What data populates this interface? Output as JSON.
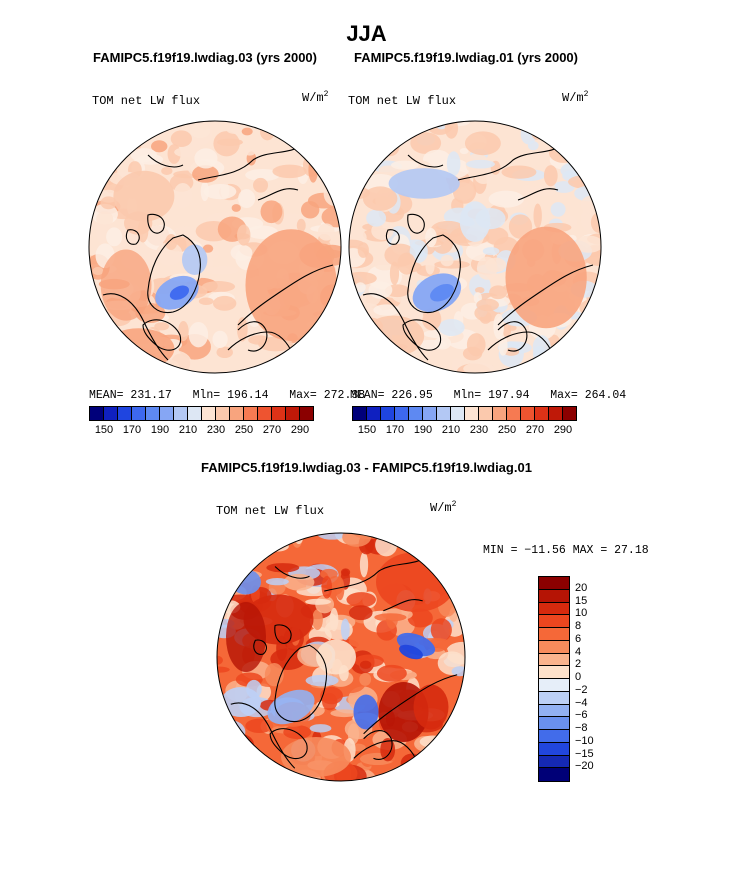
{
  "page_title": "JJA",
  "chart_data": [
    {
      "type": "heatmap",
      "projection": "north-polar-stereographic",
      "case_title": "FAMIPC5.f19f19.lwdiag.03 (yrs 2000)",
      "variable": "TOM net LW flux",
      "units": "W/m",
      "units_exp": "2",
      "mean": "231.17",
      "min": "196.14",
      "max": "272.38",
      "stats_text": {
        "mean_label": "MEAN=",
        "min_label": "Mln=",
        "max_label": "Max="
      },
      "contour_levels": [
        140,
        150,
        160,
        170,
        180,
        190,
        200,
        210,
        220,
        230,
        240,
        250,
        260,
        270,
        280,
        290
      ],
      "colorbar_ticks": [
        "150",
        "170",
        "190",
        "210",
        "230",
        "250",
        "270",
        "290"
      ],
      "colors": [
        "#00007a",
        "#0f20c0",
        "#1f45e0",
        "#3d68ef",
        "#5e89f2",
        "#86a6f4",
        "#b3c8f4",
        "#dde7f4",
        "#fde4d3",
        "#fbc9ad",
        "#f8a47e",
        "#f67a52",
        "#ee5430",
        "#dd3217",
        "#bf1908",
        "#8b0000"
      ]
    },
    {
      "type": "heatmap",
      "projection": "north-polar-stereographic",
      "case_title": "FAMIPC5.f19f19.lwdiag.01 (yrs 2000)",
      "variable": "TOM net LW flux",
      "units": "W/m",
      "units_exp": "2",
      "mean": "226.95",
      "min": "197.94",
      "max": "264.04",
      "stats_text": {
        "mean_label": "MEAN=",
        "min_label": "Mln=",
        "max_label": "Max="
      },
      "contour_levels": [
        140,
        150,
        160,
        170,
        180,
        190,
        200,
        210,
        220,
        230,
        240,
        250,
        260,
        270,
        280,
        290
      ],
      "colorbar_ticks": [
        "150",
        "170",
        "190",
        "210",
        "230",
        "250",
        "270",
        "290"
      ],
      "colors": [
        "#00007a",
        "#0f20c0",
        "#1f45e0",
        "#3d68ef",
        "#5e89f2",
        "#86a6f4",
        "#b3c8f4",
        "#dde7f4",
        "#fde4d3",
        "#fbc9ad",
        "#f8a47e",
        "#f67a52",
        "#ee5430",
        "#dd3217",
        "#bf1908",
        "#8b0000"
      ]
    },
    {
      "type": "heatmap",
      "projection": "north-polar-stereographic",
      "case_title": "FAMIPC5.f19f19.lwdiag.03 - FAMIPC5.f19f19.lwdiag.01",
      "variable": "TOM net LW flux",
      "units": "W/m",
      "units_exp": "2",
      "min_max_text": "MIN = −11.56 MAX =  27.18",
      "min": -11.56,
      "max": 27.18,
      "colorbar_labels_top_to_bottom": [
        "20",
        "15",
        "10",
        "8",
        "6",
        "4",
        "2",
        "0",
        "−2",
        "−4",
        "−6",
        "−8",
        "−10",
        "−15",
        "−20"
      ],
      "colors_top_to_bottom": [
        "#8b0000",
        "#b51405",
        "#d62a0e",
        "#ec461f",
        "#f56838",
        "#f78b5c",
        "#fab38d",
        "#fde1cb",
        "#e6eef9",
        "#bcd0f6",
        "#92b1f3",
        "#6a91ef",
        "#426cea",
        "#2146dd",
        "#1529b4",
        "#000077"
      ]
    }
  ]
}
